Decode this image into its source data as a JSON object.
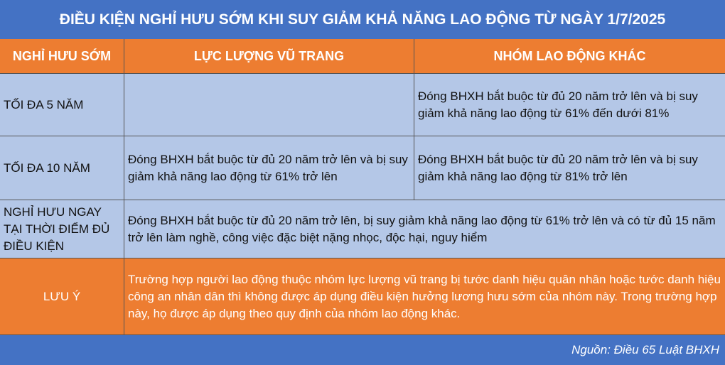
{
  "title": "ĐIỀU KIỆN NGHỈ HƯU SỚM KHI SUY GIẢM KHẢ NĂNG LAO ĐỘNG TỪ NGÀY 1/7/2025",
  "headers": [
    "NGHỈ HƯU SỚM",
    "LỰC LƯỢNG VŨ TRANG",
    "NHÓM LAO ĐỘNG KHÁC"
  ],
  "rows": [
    {
      "label": "TỐI ĐA 5 NĂM",
      "armed": "",
      "other": "Đóng BHXH bắt buộc từ đủ 20 năm trở lên và bị suy giảm khả năng lao động từ 61% đến dưới 81%"
    },
    {
      "label": "TỐI ĐA 10 NĂM",
      "armed": "Đóng BHXH bắt buộc từ đủ 20 năm trở lên và bị suy giảm khả năng lao động từ 61% trở lên",
      "other": "Đóng BHXH bắt buộc từ đủ 20 năm trở lên và bị suy giảm khả năng lao động từ 81% trở lên"
    },
    {
      "label": "NGHỈ HƯU NGAY TẠI THỜI ĐIỂM ĐỦ ĐIỀU KIỆN",
      "merged": "Đóng BHXH bắt buộc từ đủ 20 năm trở lên, bị suy giảm khả năng lao động từ 61% trở lên và có từ đủ 15 năm trở lên làm nghề, công việc đặc biệt nặng nhọc, độc hại, nguy hiểm"
    }
  ],
  "note": {
    "label": "LƯU Ý",
    "text": "Trường hợp người lao động thuộc nhóm lực lượng vũ trang bị tước danh hiệu quân nhân hoặc tước danh hiệu công an nhân dân thì không được áp dụng điều kiện hưởng lương hưu sớm của nhóm này. Trong trường hợp này, họ được áp dụng theo quy định của nhóm lao động khác."
  },
  "source": "Nguồn: Điều 65 Luật BHXH",
  "colors": {
    "blue": "#4472C4",
    "orange": "#ED7D31",
    "light_blue": "#B4C7E7"
  }
}
